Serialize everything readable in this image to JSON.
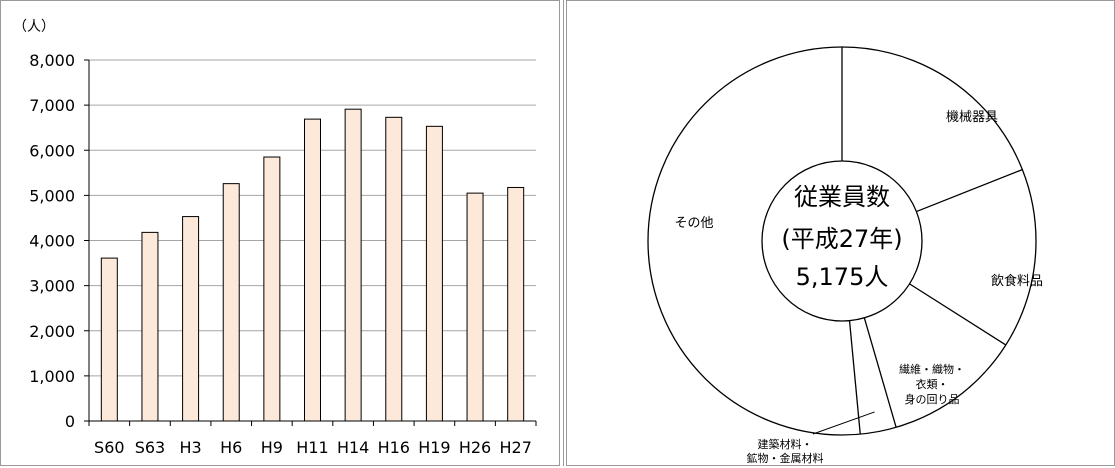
{
  "chart_data": [
    {
      "type": "bar",
      "ylabel": "（人）",
      "categories": [
        "S60",
        "S63",
        "H3",
        "H6",
        "H9",
        "H11",
        "H14",
        "H16",
        "H19",
        "H26",
        "H27"
      ],
      "values": [
        3610,
        4180,
        4530,
        5260,
        5850,
        6690,
        6910,
        6730,
        6530,
        5050,
        5175
      ],
      "ylim": [
        0,
        8000
      ],
      "yticks": [
        0,
        1000,
        2000,
        3000,
        4000,
        5000,
        6000,
        7000,
        8000
      ],
      "ytick_labels": [
        "0",
        "1,000",
        "2,000",
        "3,000",
        "4,000",
        "5,000",
        "6,000",
        "7,000",
        "8,000"
      ],
      "grid": true,
      "colors": {
        "bar_fill": "#fde9d9",
        "bar_stroke": "#000000",
        "grid": "#a6a6a6"
      }
    },
    {
      "type": "pie",
      "center_label": [
        "従業員数",
        "(平成27年)",
        "5,175人"
      ],
      "slices": [
        {
          "label": [
            "機械器具"
          ],
          "value": 19.0
        },
        {
          "label": [
            "飲食料品"
          ],
          "value": 15.0
        },
        {
          "label": [
            "繊維・織物・",
            "衣類・",
            "身の回り品"
          ],
          "value": 11.5
        },
        {
          "label": [
            "建築材料・",
            "鉱物・金属材料"
          ],
          "value": 3.0
        },
        {
          "label": [
            "その他"
          ],
          "value": 51.5
        }
      ],
      "colors": {
        "fill": "#ffffff",
        "stroke": "#000000"
      }
    }
  ]
}
